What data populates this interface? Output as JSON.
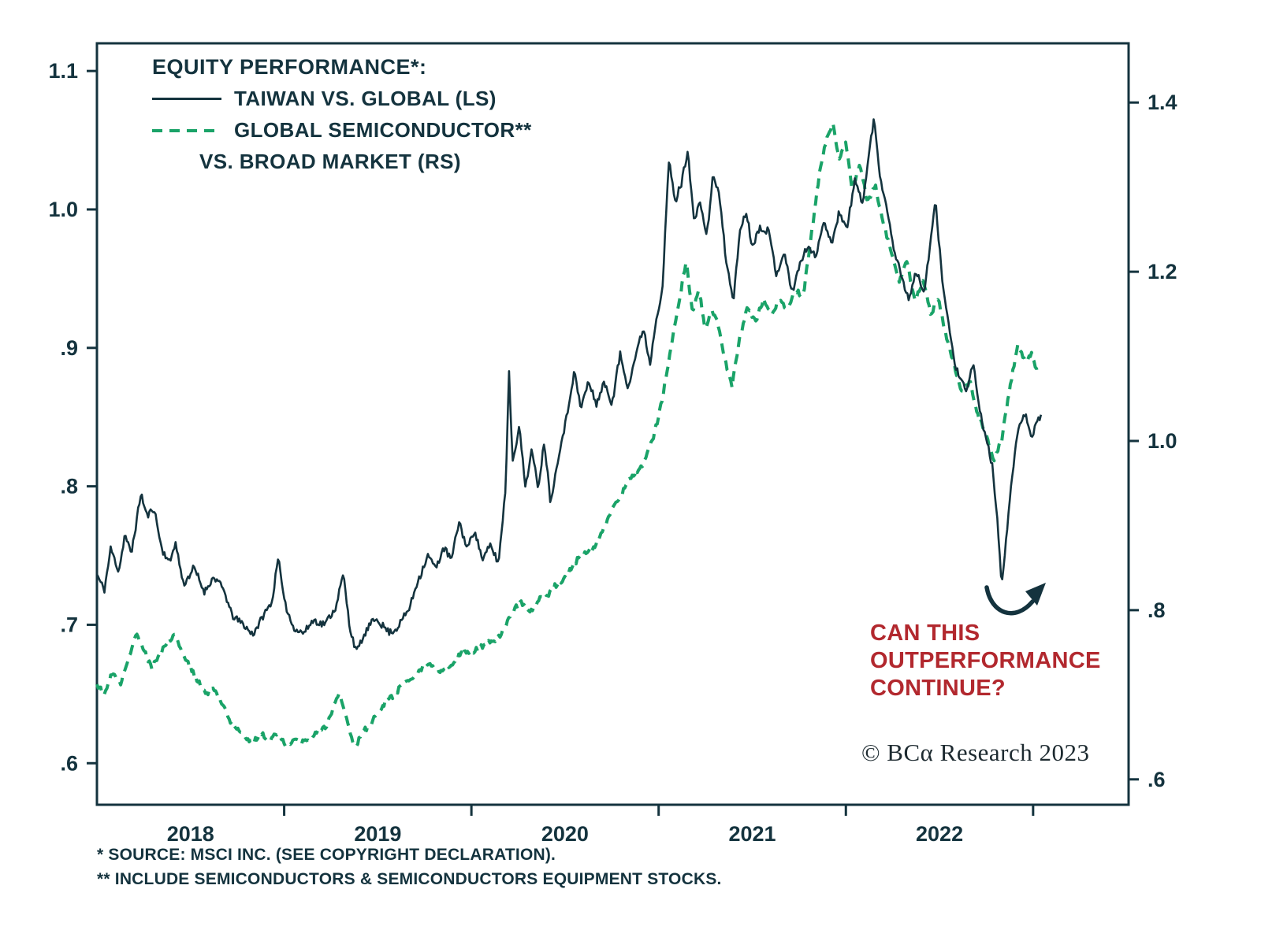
{
  "colors": {
    "line_dark_navy": "#14333e",
    "line_green": "#1aa368",
    "annotation_red": "#b2282e",
    "background": "#ffffff"
  },
  "annotation": {
    "lines": [
      "CAN THIS",
      "OUTPERFORMANCE",
      "CONTINUE?"
    ],
    "color": "#b2282e",
    "arrow": "curved-arrow-up-right"
  },
  "copyright": "© BCα Research 2023",
  "footnotes": [
    "*  SOURCE: MSCI INC. (SEE COPYRIGHT DECLARATION).",
    "** INCLUDE SEMICONDUCTORS & SEMICONDUCTORS EQUIPMENT STOCKS."
  ],
  "chart_data": {
    "type": "line",
    "title": "EQUITY PERFORMANCE*:",
    "legend": [
      {
        "label": "TAIWAN VS. GLOBAL (LS)",
        "style": "solid",
        "color": "#14333e",
        "axis": "left"
      },
      {
        "label": "GLOBAL SEMICONDUCTOR**",
        "label2": "VS. BROAD MARKET (RS)",
        "style": "dashed",
        "color": "#1aa368",
        "axis": "right"
      }
    ],
    "x_axis": {
      "start": 2018.0,
      "end": 2023.51,
      "tick_years": [
        2019,
        2020,
        2021,
        2022,
        2023
      ],
      "year_labels": [
        "2018",
        "2019",
        "2020",
        "2021",
        "2022"
      ]
    },
    "left_axis": {
      "labels": [
        "1.1",
        "1.0",
        ".9",
        ".8",
        ".7",
        ".6"
      ],
      "values": [
        1.1,
        1.0,
        0.9,
        0.8,
        0.7,
        0.6
      ],
      "top": 1.12,
      "bottom": 0.57
    },
    "right_axis": {
      "labels": [
        "1.4",
        "1.2",
        "1.0",
        ".8",
        ".6"
      ],
      "values": [
        1.4,
        1.2,
        1.0,
        0.8,
        0.6
      ],
      "top": 1.47,
      "bottom": 0.57
    },
    "noise": {
      "seed": 11,
      "points_per_year": 150
    },
    "series": [
      {
        "name": "TAIWAN VS. GLOBAL (LS)",
        "axis": "left",
        "color": "#14333e",
        "style": "solid",
        "keypoints": [
          [
            2018.0,
            0.735
          ],
          [
            2018.04,
            0.725
          ],
          [
            2018.074,
            0.755
          ],
          [
            2018.116,
            0.74
          ],
          [
            2018.149,
            0.765
          ],
          [
            2018.183,
            0.75
          ],
          [
            2018.234,
            0.795
          ],
          [
            2018.267,
            0.778
          ],
          [
            2018.305,
            0.785
          ],
          [
            2018.347,
            0.755
          ],
          [
            2018.389,
            0.745
          ],
          [
            2018.419,
            0.76
          ],
          [
            2018.461,
            0.73
          ],
          [
            2018.516,
            0.74
          ],
          [
            2018.571,
            0.725
          ],
          [
            2018.621,
            0.735
          ],
          [
            2018.676,
            0.724
          ],
          [
            2018.726,
            0.705
          ],
          [
            2018.781,
            0.7
          ],
          [
            2018.832,
            0.694
          ],
          [
            2018.886,
            0.705
          ],
          [
            2018.937,
            0.718
          ],
          [
            2018.966,
            0.75
          ],
          [
            2019.0,
            0.715
          ],
          [
            2019.051,
            0.7
          ],
          [
            2019.105,
            0.694
          ],
          [
            2019.16,
            0.705
          ],
          [
            2019.219,
            0.7
          ],
          [
            2019.274,
            0.714
          ],
          [
            2019.316,
            0.735
          ],
          [
            2019.349,
            0.7
          ],
          [
            2019.387,
            0.68
          ],
          [
            2019.442,
            0.695
          ],
          [
            2019.497,
            0.706
          ],
          [
            2019.556,
            0.695
          ],
          [
            2019.611,
            0.7
          ],
          [
            2019.665,
            0.71
          ],
          [
            2019.716,
            0.735
          ],
          [
            2019.766,
            0.75
          ],
          [
            2019.808,
            0.74
          ],
          [
            2019.851,
            0.756
          ],
          [
            2019.893,
            0.745
          ],
          [
            2019.935,
            0.775
          ],
          [
            2019.977,
            0.755
          ],
          [
            2020.019,
            0.77
          ],
          [
            2020.061,
            0.746
          ],
          [
            2020.103,
            0.756
          ],
          [
            2020.145,
            0.745
          ],
          [
            2020.183,
            0.8
          ],
          [
            2020.2,
            0.885
          ],
          [
            2020.221,
            0.82
          ],
          [
            2020.255,
            0.845
          ],
          [
            2020.288,
            0.8
          ],
          [
            2020.322,
            0.825
          ],
          [
            2020.356,
            0.8
          ],
          [
            2020.389,
            0.835
          ],
          [
            2020.423,
            0.79
          ],
          [
            2020.465,
            0.825
          ],
          [
            2020.507,
            0.85
          ],
          [
            2020.549,
            0.885
          ],
          [
            2020.583,
            0.855
          ],
          [
            2020.625,
            0.875
          ],
          [
            2020.667,
            0.86
          ],
          [
            2020.709,
            0.875
          ],
          [
            2020.752,
            0.86
          ],
          [
            2020.794,
            0.895
          ],
          [
            2020.836,
            0.875
          ],
          [
            2020.878,
            0.895
          ],
          [
            2020.92,
            0.915
          ],
          [
            2020.954,
            0.89
          ],
          [
            2020.987,
            0.925
          ],
          [
            2021.021,
            0.945
          ],
          [
            2021.055,
            1.035
          ],
          [
            2021.088,
            1.005
          ],
          [
            2021.122,
            1.02
          ],
          [
            2021.156,
            1.045
          ],
          [
            2021.189,
            0.99
          ],
          [
            2021.223,
            1.005
          ],
          [
            2021.257,
            0.98
          ],
          [
            2021.291,
            1.025
          ],
          [
            2021.324,
            1.01
          ],
          [
            2021.358,
            0.965
          ],
          [
            2021.4,
            0.935
          ],
          [
            2021.434,
            0.985
          ],
          [
            2021.467,
            1.0
          ],
          [
            2021.501,
            0.975
          ],
          [
            2021.543,
            0.99
          ],
          [
            2021.585,
            0.985
          ],
          [
            2021.627,
            0.955
          ],
          [
            2021.669,
            0.97
          ],
          [
            2021.712,
            0.94
          ],
          [
            2021.754,
            0.96
          ],
          [
            2021.796,
            0.975
          ],
          [
            2021.838,
            0.965
          ],
          [
            2021.88,
            0.995
          ],
          [
            2021.922,
            0.975
          ],
          [
            2021.964,
            1.0
          ],
          [
            2022.006,
            0.985
          ],
          [
            2022.048,
            1.02
          ],
          [
            2022.091,
            1.005
          ],
          [
            2022.124,
            1.04
          ],
          [
            2022.15,
            1.065
          ],
          [
            2022.183,
            1.025
          ],
          [
            2022.217,
            1.005
          ],
          [
            2022.251,
            0.975
          ],
          [
            2022.293,
            0.955
          ],
          [
            2022.335,
            0.935
          ],
          [
            2022.377,
            0.955
          ],
          [
            2022.419,
            0.94
          ],
          [
            2022.453,
            0.975
          ],
          [
            2022.478,
            1.005
          ],
          [
            2022.512,
            0.955
          ],
          [
            2022.546,
            0.92
          ],
          [
            2022.579,
            0.89
          ],
          [
            2022.613,
            0.875
          ],
          [
            2022.646,
            0.865
          ],
          [
            2022.68,
            0.89
          ],
          [
            2022.714,
            0.855
          ],
          [
            2022.747,
            0.835
          ],
          [
            2022.781,
            0.815
          ],
          [
            2022.806,
            0.78
          ],
          [
            2022.832,
            0.73
          ],
          [
            2022.857,
            0.765
          ],
          [
            2022.891,
            0.81
          ],
          [
            2022.924,
            0.845
          ],
          [
            2022.958,
            0.855
          ],
          [
            2022.992,
            0.83
          ],
          [
            2023.017,
            0.845
          ],
          [
            2023.042,
            0.85
          ]
        ]
      },
      {
        "name": "GLOBAL SEMICONDUCTOR VS. BROAD MARKET (RS)",
        "axis": "right",
        "color": "#1aa368",
        "style": "dashed",
        "keypoints": [
          [
            2018.0,
            0.715
          ],
          [
            2018.04,
            0.7
          ],
          [
            2018.082,
            0.725
          ],
          [
            2018.124,
            0.71
          ],
          [
            2018.166,
            0.745
          ],
          [
            2018.208,
            0.775
          ],
          [
            2018.251,
            0.755
          ],
          [
            2018.293,
            0.735
          ],
          [
            2018.335,
            0.75
          ],
          [
            2018.377,
            0.765
          ],
          [
            2018.419,
            0.775
          ],
          [
            2018.461,
            0.745
          ],
          [
            2018.503,
            0.73
          ],
          [
            2018.545,
            0.715
          ],
          [
            2018.587,
            0.7
          ],
          [
            2018.629,
            0.706
          ],
          [
            2018.672,
            0.69
          ],
          [
            2018.714,
            0.67
          ],
          [
            2018.756,
            0.66
          ],
          [
            2018.798,
            0.65
          ],
          [
            2018.84,
            0.645
          ],
          [
            2018.882,
            0.655
          ],
          [
            2018.924,
            0.648
          ],
          [
            2018.966,
            0.657
          ],
          [
            2019.008,
            0.643
          ],
          [
            2019.051,
            0.648
          ],
          [
            2019.093,
            0.642
          ],
          [
            2019.135,
            0.65
          ],
          [
            2019.177,
            0.655
          ],
          [
            2019.219,
            0.662
          ],
          [
            2019.261,
            0.685
          ],
          [
            2019.295,
            0.7
          ],
          [
            2019.337,
            0.668
          ],
          [
            2019.379,
            0.638
          ],
          [
            2019.421,
            0.655
          ],
          [
            2019.463,
            0.665
          ],
          [
            2019.505,
            0.685
          ],
          [
            2019.547,
            0.695
          ],
          [
            2019.589,
            0.7
          ],
          [
            2019.632,
            0.712
          ],
          [
            2019.674,
            0.718
          ],
          [
            2019.716,
            0.725
          ],
          [
            2019.758,
            0.733
          ],
          [
            2019.8,
            0.73
          ],
          [
            2019.842,
            0.728
          ],
          [
            2019.884,
            0.738
          ],
          [
            2019.926,
            0.745
          ],
          [
            2019.968,
            0.75
          ],
          [
            2020.011,
            0.753
          ],
          [
            2020.061,
            0.758
          ],
          [
            2020.112,
            0.765
          ],
          [
            2020.162,
            0.772
          ],
          [
            2020.213,
            0.795
          ],
          [
            2020.263,
            0.81
          ],
          [
            2020.314,
            0.8
          ],
          [
            2020.364,
            0.812
          ],
          [
            2020.415,
            0.82
          ],
          [
            2020.465,
            0.832
          ],
          [
            2020.516,
            0.845
          ],
          [
            2020.566,
            0.858
          ],
          [
            2020.617,
            0.865
          ],
          [
            2020.667,
            0.88
          ],
          [
            2020.718,
            0.9
          ],
          [
            2020.768,
            0.925
          ],
          [
            2020.819,
            0.945
          ],
          [
            2020.869,
            0.963
          ],
          [
            2020.92,
            0.975
          ],
          [
            2020.971,
            1.0
          ],
          [
            2021.021,
            1.05
          ],
          [
            2021.072,
            1.12
          ],
          [
            2021.114,
            1.17
          ],
          [
            2021.147,
            1.21
          ],
          [
            2021.181,
            1.15
          ],
          [
            2021.215,
            1.18
          ],
          [
            2021.249,
            1.13
          ],
          [
            2021.282,
            1.16
          ],
          [
            2021.316,
            1.14
          ],
          [
            2021.349,
            1.1
          ],
          [
            2021.392,
            1.06
          ],
          [
            2021.434,
            1.12
          ],
          [
            2021.476,
            1.16
          ],
          [
            2021.518,
            1.14
          ],
          [
            2021.56,
            1.17
          ],
          [
            2021.602,
            1.15
          ],
          [
            2021.644,
            1.17
          ],
          [
            2021.686,
            1.16
          ],
          [
            2021.728,
            1.18
          ],
          [
            2021.771,
            1.17
          ],
          [
            2021.813,
            1.24
          ],
          [
            2021.855,
            1.31
          ],
          [
            2021.897,
            1.36
          ],
          [
            2021.931,
            1.38
          ],
          [
            2021.964,
            1.33
          ],
          [
            2021.998,
            1.355
          ],
          [
            2022.032,
            1.3
          ],
          [
            2022.074,
            1.325
          ],
          [
            2022.116,
            1.28
          ],
          [
            2022.158,
            1.3
          ],
          [
            2022.2,
            1.26
          ],
          [
            2022.242,
            1.22
          ],
          [
            2022.284,
            1.19
          ],
          [
            2022.326,
            1.21
          ],
          [
            2022.368,
            1.17
          ],
          [
            2022.411,
            1.19
          ],
          [
            2022.453,
            1.15
          ],
          [
            2022.495,
            1.17
          ],
          [
            2022.537,
            1.12
          ],
          [
            2022.579,
            1.09
          ],
          [
            2022.621,
            1.06
          ],
          [
            2022.663,
            1.07
          ],
          [
            2022.705,
            1.03
          ],
          [
            2022.747,
            1.01
          ],
          [
            2022.789,
            0.98
          ],
          [
            2022.832,
            1.0
          ],
          [
            2022.874,
            1.06
          ],
          [
            2022.916,
            1.115
          ],
          [
            2022.958,
            1.09
          ],
          [
            2022.992,
            1.1
          ],
          [
            2023.025,
            1.075
          ]
        ]
      }
    ]
  }
}
